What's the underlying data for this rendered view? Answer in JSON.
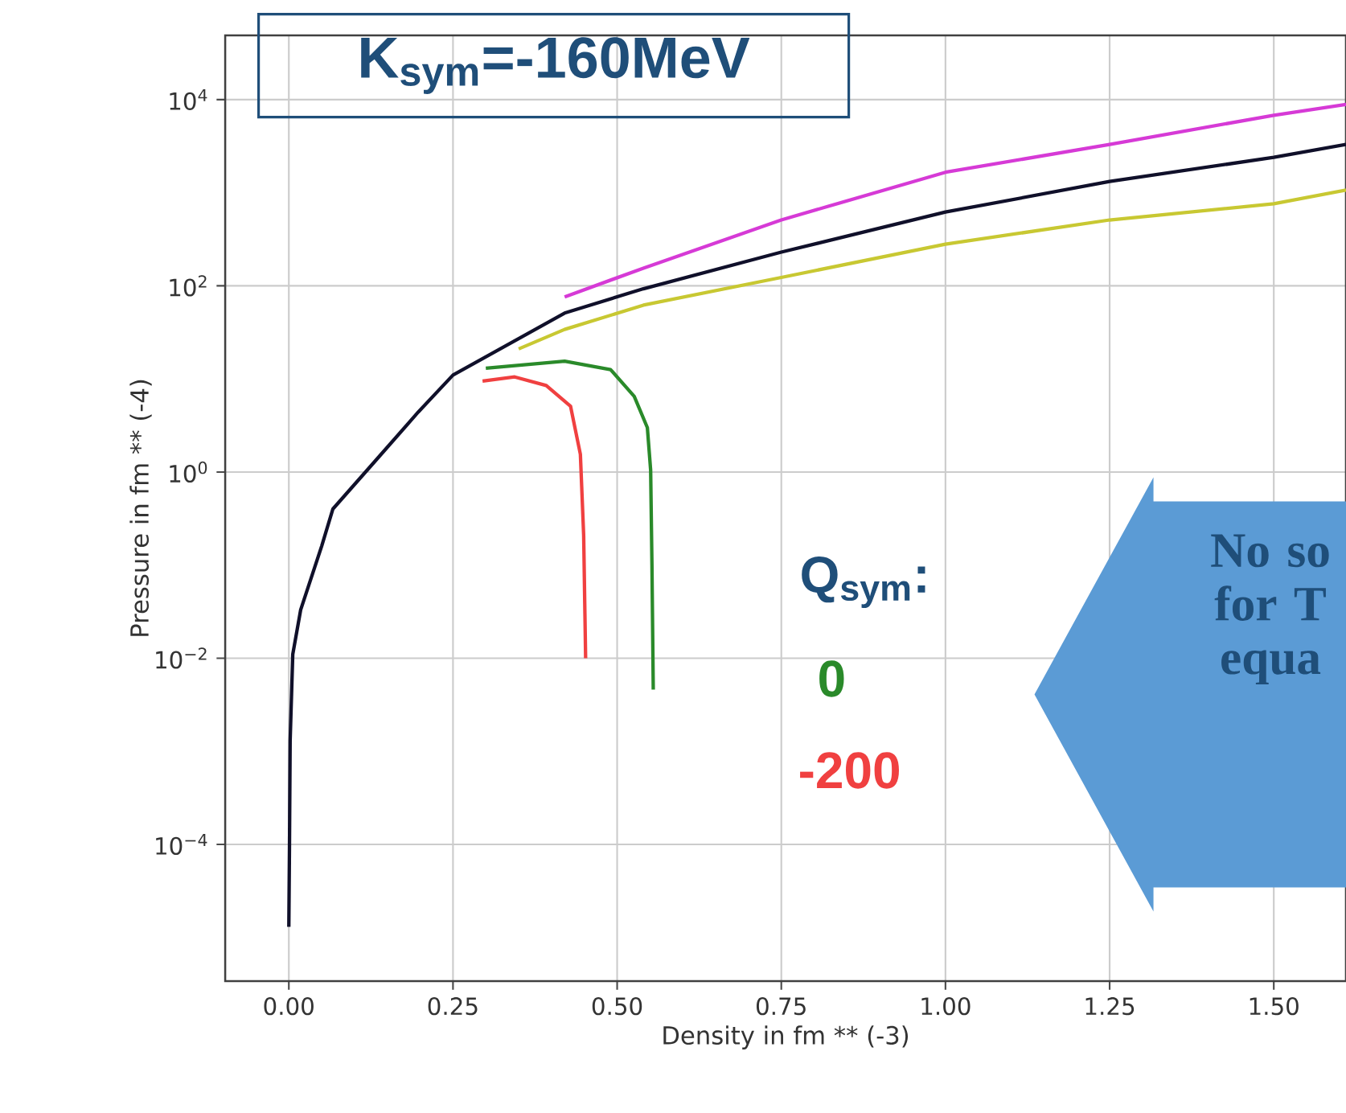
{
  "chart_data": {
    "type": "line",
    "title": "K$_{sym}$=-160MeV",
    "xlabel": "Density in fm ** (-3)",
    "ylabel": "Pressure in fm ** (-4)",
    "annotations": [
      "Q$_{sym}$:",
      "No so for T equa"
    ],
    "log": "y",
    "grid": true,
    "xlim": [
      -0.097,
      1.61
    ],
    "ylim": [
      3.4e-06,
      49000
    ],
    "xticks": [
      {
        "value": 0,
        "label": "0.00"
      },
      {
        "value": 0.25,
        "label": "0.25"
      },
      {
        "value": 0.5,
        "label": "0.50"
      },
      {
        "value": 0.75,
        "label": "0.75"
      },
      {
        "value": 1.0,
        "label": "1.00"
      },
      {
        "value": 1.25,
        "label": "1.25"
      },
      {
        "value": 1.5,
        "label": "1.50"
      }
    ],
    "yticks": [
      {
        "value": 0.0001,
        "label": "10$^{−4}$"
      },
      {
        "value": 0.01,
        "label": "10$^{−2}$"
      },
      {
        "value": 1,
        "label": "10$^{0}$"
      },
      {
        "value": 100,
        "label": "10$^{2}$"
      },
      {
        "value": 10000,
        "label": "10$^{4}$"
      }
    ],
    "series": [
      {
        "color": "#c8c832",
        "x": [
          0.35,
          0.42,
          0.54,
          0.75,
          1.0,
          1.25,
          1.5,
          1.61
        ],
        "values": [
          21,
          34,
          62,
          123,
          280,
          510,
          760,
          1070
        ]
      },
      {
        "name": "0",
        "color": "#2a8a2a",
        "x": [
          0.3,
          0.42,
          0.49,
          0.526,
          0.546,
          0.551,
          0.553,
          0.555
        ],
        "values": [
          13,
          15.5,
          12.6,
          6.5,
          3,
          1.05,
          0.1,
          0.0046
        ]
      },
      {
        "name": "-200",
        "color": "#f04040",
        "x": [
          0.295,
          0.344,
          0.392,
          0.429,
          0.444,
          0.449,
          0.452
        ],
        "values": [
          9.5,
          10.5,
          8.5,
          5.1,
          1.55,
          0.21,
          0.01
        ]
      },
      {
        "color": "#d63ad6",
        "x": [
          0.42,
          0.54,
          0.75,
          1.0,
          1.25,
          1.5,
          1.61
        ],
        "values": [
          76,
          155,
          510,
          1660,
          3300,
          6800,
          8900
        ]
      },
      {
        "color": "#10102a",
        "x": [
          0,
          0.001,
          0.002,
          0.006,
          0.018,
          0.05,
          0.067,
          0.131,
          0.197,
          0.25,
          0.42,
          0.54,
          0.75,
          1.0,
          1.25,
          1.5,
          1.61
        ],
        "values": [
          1.3e-05,
          0.0001,
          0.0013,
          0.011,
          0.033,
          0.16,
          0.4,
          1.3,
          4.4,
          11,
          51,
          93,
          230,
          620,
          1320,
          2400,
          3300
        ]
      }
    ]
  }
}
